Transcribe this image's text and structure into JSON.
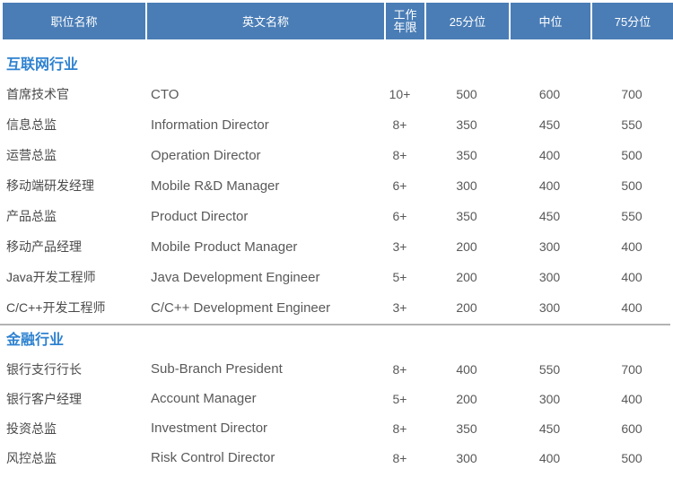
{
  "colors": {
    "header_bg": "#4a7db6",
    "header_text": "#ffffff",
    "section_title": "#2e82d0",
    "divider": "#b3b3b3",
    "position_text": "#4a4a4a",
    "value_text": "#595959"
  },
  "table": {
    "headers": [
      "职位名称",
      "英文名称",
      "工作年限",
      "25分位",
      "中位",
      "75分位"
    ],
    "sections": [
      {
        "title": "互联网行业",
        "rows": [
          {
            "position": "首席技术官",
            "english": "CTO",
            "years": "10+",
            "p25": "500",
            "median": "600",
            "p75": "700"
          },
          {
            "position": "信息总监",
            "english": "Information Director",
            "years": "8+",
            "p25": "350",
            "median": "450",
            "p75": "550"
          },
          {
            "position": "运营总监",
            "english": "Operation Director",
            "years": "8+",
            "p25": "350",
            "median": "400",
            "p75": "500"
          },
          {
            "position": "移动端研发经理",
            "english": "Mobile R&D Manager",
            "years": "6+",
            "p25": "300",
            "median": "400",
            "p75": "500"
          },
          {
            "position": "产品总监",
            "english": "Product Director",
            "years": "6+",
            "p25": "350",
            "median": "450",
            "p75": "550"
          },
          {
            "position": "移动产品经理",
            "english": "Mobile Product Manager",
            "years": "3+",
            "p25": "200",
            "median": "300",
            "p75": "400"
          },
          {
            "position": "Java开发工程师",
            "english": "Java Development Engineer",
            "years": "5+",
            "p25": "200",
            "median": "300",
            "p75": "400"
          },
          {
            "position": "C/C++开发工程师",
            "english": "C/C++ Development Engineer",
            "years": "3+",
            "p25": "200",
            "median": "300",
            "p75": "400"
          }
        ]
      },
      {
        "title": "金融行业",
        "rows": [
          {
            "position": "银行支行行长",
            "english": "Sub-Branch President",
            "years": "8+",
            "p25": "400",
            "median": "550",
            "p75": "700"
          },
          {
            "position": "银行客户经理",
            "english": "Account Manager",
            "years": "5+",
            "p25": "200",
            "median": "300",
            "p75": "400"
          },
          {
            "position": "投资总监",
            "english": "Investment Director",
            "years": "8+",
            "p25": "350",
            "median": "450",
            "p75": "600"
          },
          {
            "position": "风控总监",
            "english": "Risk Control Director",
            "years": "8+",
            "p25": "300",
            "median": "400",
            "p75": "500"
          }
        ]
      }
    ]
  }
}
